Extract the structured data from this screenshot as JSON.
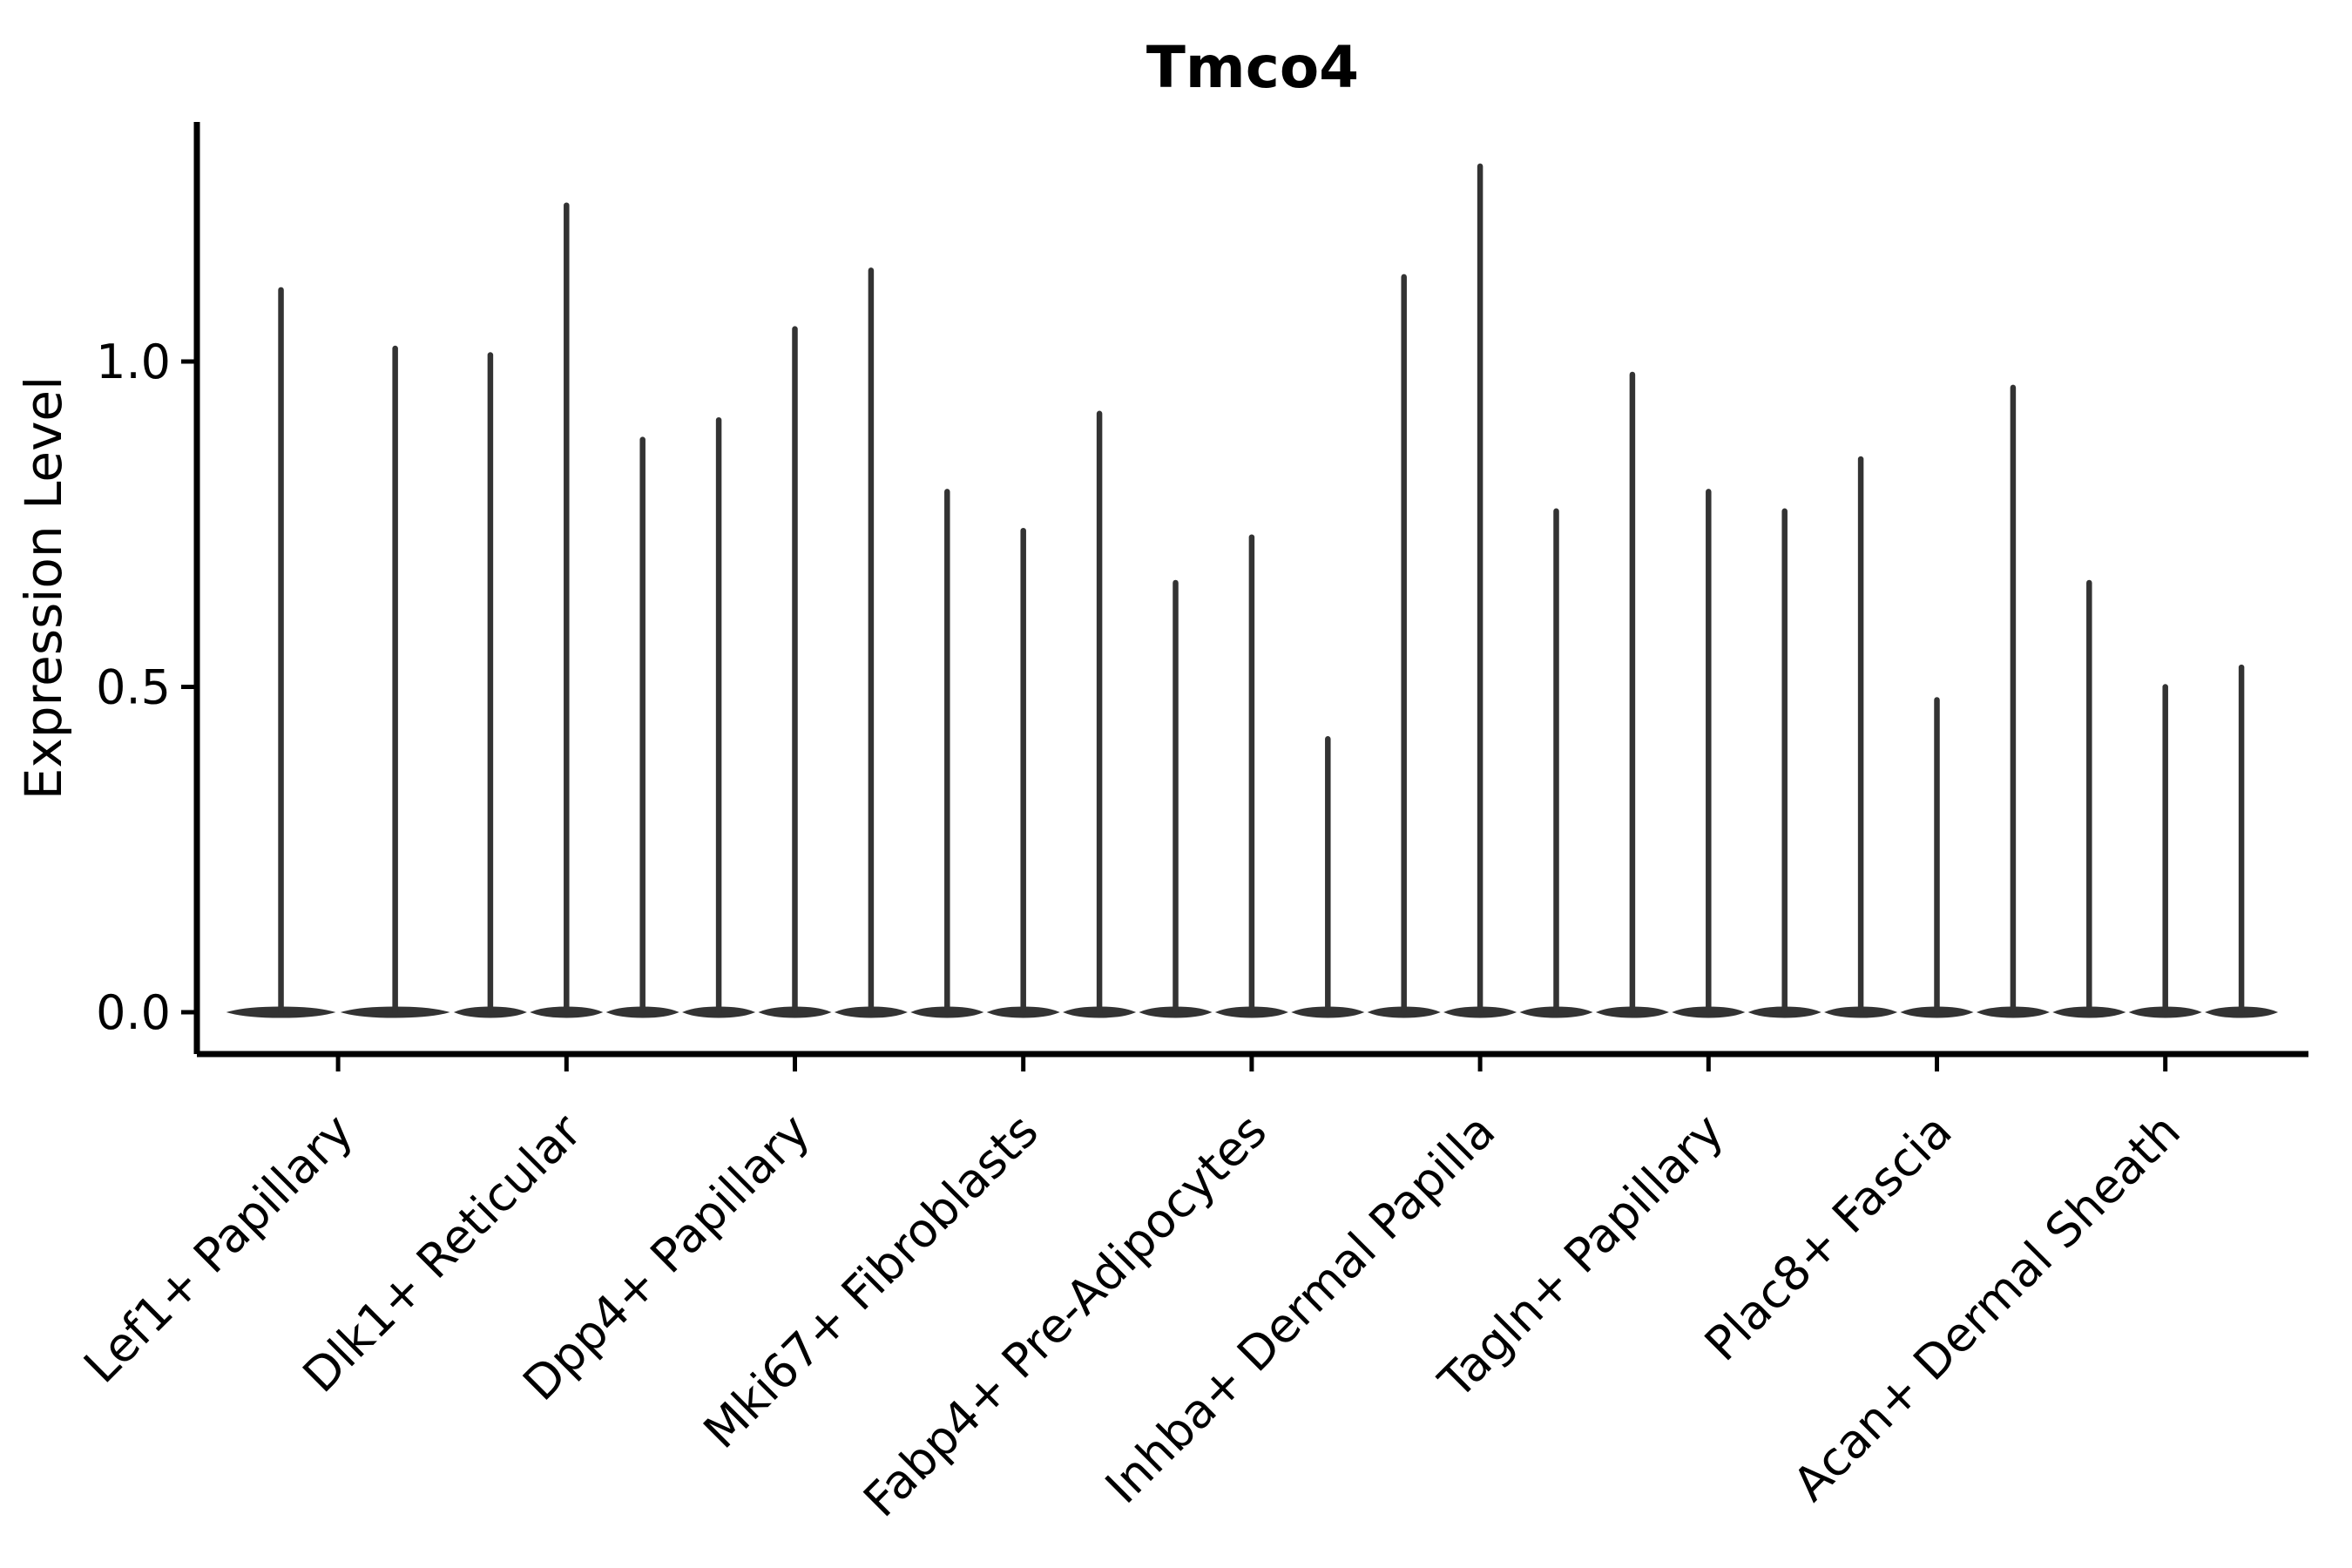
{
  "title": "Tmco4",
  "ylabel": "Expression Level",
  "colors": {
    "violin": "#333333",
    "axis": "#000000",
    "background": "#ffffff",
    "text": "#000000"
  },
  "chart_data": {
    "type": "violin",
    "title": "Tmco4",
    "xlabel": "",
    "ylabel": "Expression Level",
    "ylim": [
      0,
      1.37
    ],
    "yticks": [
      0,
      0.5,
      1.0
    ],
    "ytick_labels": [
      "0.0",
      "0.5",
      "1.0"
    ],
    "grid": false,
    "legend_position": "none",
    "xtick_rotation_degrees": 45,
    "violin_style": "needle-thin violins flattened at 0 with a vertical spike to the max expression value",
    "categories": [
      "Lef1+ Papillary",
      "Dlk1+ Reticular",
      "Dpp4+ Papillary",
      "Mki67+ Fibroblasts",
      "Fabp4+ Pre-Adipocytes",
      "Inhba+ Dermal Papilla",
      "Tagln+ Papillary",
      "Plac8+ Fascia",
      "Acan+ Dermal Sheath"
    ],
    "groups": [
      {
        "category": "Lef1+ Papillary",
        "violin_maxima": [
          1.11,
          1.02
        ]
      },
      {
        "category": "Dlk1+ Reticular",
        "violin_maxima": [
          1.01,
          1.24,
          0.88
        ]
      },
      {
        "category": "Dpp4+ Papillary",
        "violin_maxima": [
          0.91,
          1.05,
          1.14
        ]
      },
      {
        "category": "Mki67+ Fibroblasts",
        "violin_maxima": [
          0.8,
          0.74,
          0.92
        ]
      },
      {
        "category": "Fabp4+ Pre-Adipocytes",
        "violin_maxima": [
          0.66,
          0.73,
          0.42
        ]
      },
      {
        "category": "Inhba+ Dermal Papilla",
        "violin_maxima": [
          1.13,
          1.3,
          0.77
        ]
      },
      {
        "category": "Tagln+ Papillary",
        "violin_maxima": [
          0.98,
          0.8,
          0.77
        ]
      },
      {
        "category": "Plac8+ Fascia",
        "violin_maxima": [
          0.85,
          0.48,
          0.96
        ]
      },
      {
        "category": "Acan+ Dermal Sheath",
        "violin_maxima": [
          0.66,
          0.5,
          0.53
        ]
      }
    ]
  }
}
